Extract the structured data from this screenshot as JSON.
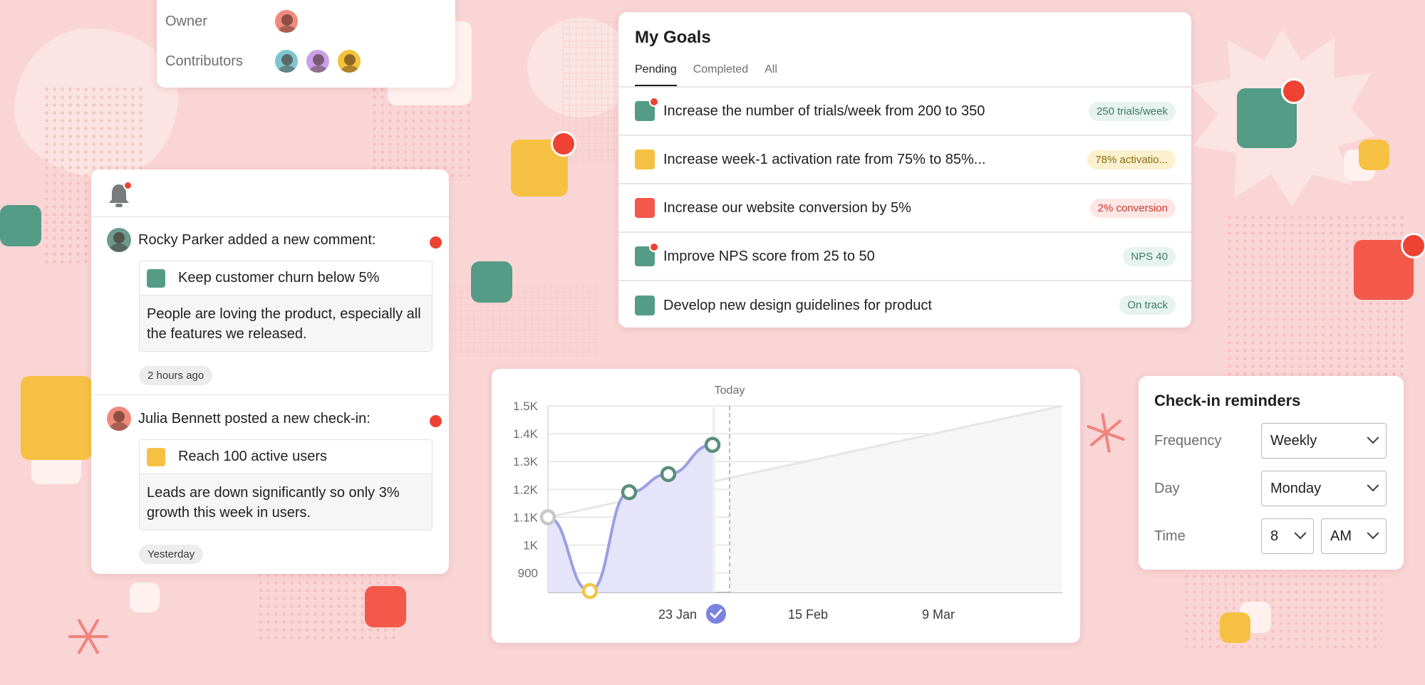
{
  "colors": {
    "background": "#f9d5d5",
    "green": "#559c87",
    "yellow": "#f6c143",
    "red": "#f2594b",
    "notification_dot": "#ee4233",
    "chart_line": "#9ba0e2",
    "chart_point_green": "#5a8f7b",
    "chart_point_yellow": "#f1c547"
  },
  "owner_card": {
    "owner_label": "Owner",
    "contributors_label": "Contributors",
    "owner_avatar": "avatar-woman",
    "contributor_avatars": [
      "avatar-man-glasses",
      "avatar-man-beard",
      "avatar-man-dark"
    ]
  },
  "notifications": {
    "bell_icon": "bell-icon",
    "items": [
      {
        "actor": "Rocky Parker",
        "headline": "Rocky Parker added a new comment:",
        "goal_color": "#559c87",
        "goal": "Keep customer churn below 5%",
        "message": "People are loving the product, especially all the features we released.",
        "time": "2 hours ago",
        "unread": true
      },
      {
        "actor": "Julia Bennett",
        "headline": "Julia Bennett posted a new check-in:",
        "goal_color": "#f6c143",
        "goal": "Reach 100 active users",
        "message": "Leads are down significantly so only 3% growth this week in users.",
        "time": "Yesterday",
        "unread": true
      }
    ]
  },
  "goals": {
    "title": "My Goals",
    "tabs": [
      {
        "label": "Pending",
        "active": true
      },
      {
        "label": "Completed",
        "active": false
      },
      {
        "label": "All",
        "active": false
      }
    ],
    "rows": [
      {
        "text": "Increase the number of trials/week from 200 to 350",
        "color": "#559c87",
        "status": "250 trials/week",
        "status_tone": "green",
        "dot": true
      },
      {
        "text": "Increase week-1 activation rate from 75% to 85%...",
        "color": "#f6c143",
        "status": "78% activatio...",
        "status_tone": "yellow",
        "dot": false
      },
      {
        "text": "Increase our website conversion by 5%",
        "color": "#f2594b",
        "status": "2% conversion",
        "status_tone": "red",
        "dot": false
      },
      {
        "text": "Improve NPS score from 25 to 50",
        "color": "#559c87",
        "status": "NPS 40",
        "status_tone": "green",
        "dot": true
      },
      {
        "text": "Develop new design guidelines for product",
        "color": "#559c87",
        "status": "On track",
        "status_tone": "green",
        "dot": false
      }
    ]
  },
  "chart_data": {
    "type": "line",
    "title": "",
    "xlabel": "",
    "ylabel": "",
    "y_ticks": [
      "1.5K",
      "1.4K",
      "1.3K",
      "1.2K",
      "1.1K",
      "1K",
      "900"
    ],
    "ylim": [
      830,
      1500
    ],
    "x_tick_labels": [
      "23 Jan",
      "15 Feb",
      "9 Mar"
    ],
    "today_label": "Today",
    "today_marker_icon": "check-circle-icon",
    "grid": true,
    "series": [
      {
        "values": [
          {
            "x": "start",
            "y": 1100
          },
          {
            "x": "low",
            "y": 835
          },
          {
            "x": "mid1",
            "y": 1190
          },
          {
            "x": "mid2",
            "y": 1255
          },
          {
            "x": "today",
            "y": 1360
          }
        ]
      }
    ],
    "target_line": {
      "start": 1100,
      "end": 1500
    }
  },
  "reminders": {
    "title": "Check-in reminders",
    "frequency_label": "Frequency",
    "frequency_value": "Weekly",
    "day_label": "Day",
    "day_value": "Monday",
    "time_label": "Time",
    "hour_value": "8",
    "ampm_value": "AM"
  }
}
